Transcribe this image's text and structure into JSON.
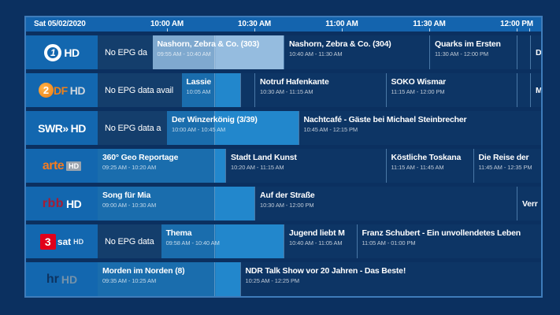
{
  "header": {
    "date": "Sat 05/02/2020",
    "times": [
      {
        "label": "10:00 AM",
        "min": 0
      },
      {
        "label": "10:30 AM",
        "min": 30
      },
      {
        "label": "11:00 AM",
        "min": 60
      },
      {
        "label": "11:30 AM",
        "min": 90
      },
      {
        "label": "12:00 PM",
        "min": 120
      }
    ],
    "extra_tick_min": 124.3
  },
  "now_min": 16.5,
  "colors": {
    "page_bg": "#0b3060",
    "panel_border": "#3f7cba",
    "header_bg": "#1464ae",
    "channel_bg": "#1367af",
    "noepg": "#143e6c",
    "future": "#0d3565",
    "current_dim": "#1a6dad",
    "current_bright": "#2287cc",
    "selected_dim": "#7fa9cf",
    "selected_bright": "#95bcdf"
  },
  "channels": [
    {
      "id": "daserste",
      "name": "Das Erste HD",
      "symbol": "1",
      "hd": "HD"
    },
    {
      "id": "zdf",
      "name": "ZDF HD",
      "symbol": "2",
      "rest": "DF",
      "hd": "HD"
    },
    {
      "id": "swr",
      "name": "SWR HD",
      "symbol": "SWR»",
      "hd": "HD"
    },
    {
      "id": "arte",
      "name": "arte HD",
      "symbol": "arte",
      "hd": "HD"
    },
    {
      "id": "rbb",
      "name": "rbb HD",
      "symbol": "rbb",
      "hd": "HD"
    },
    {
      "id": "3sat",
      "name": "3sat HD",
      "symbol": "3",
      "rest": "sat",
      "hd": "HD"
    },
    {
      "id": "hr",
      "name": "hr HD",
      "symbol": "hr",
      "hd": "HD"
    }
  ],
  "rows": [
    {
      "channel": "daserste",
      "programs": [
        {
          "title": "No EPG da",
          "time": "",
          "start": -23.8,
          "end": -5,
          "state": "noepg"
        },
        {
          "title": "Nashorn, Zebra & Co. (303)",
          "time": "09:55 AM - 10:40 AM",
          "start": -5,
          "end": 40,
          "state": "selected"
        },
        {
          "title": "Nashorn, Zebra & Co. (304)",
          "time": "10:40 AM - 11:30 AM",
          "start": 40,
          "end": 90,
          "state": "future"
        },
        {
          "title": "Quarks im Ersten",
          "time": "11:30 AM - 12:00 PM",
          "start": 90,
          "end": 120,
          "state": "future"
        },
        {
          "title": "",
          "time": "",
          "start": 120,
          "end": 124.6,
          "state": "future"
        },
        {
          "title": "D",
          "time": "",
          "start": 124.6,
          "end": 128.4,
          "state": "future"
        }
      ]
    },
    {
      "channel": "zdf",
      "programs": [
        {
          "title": "No EPG data avail",
          "time": "",
          "start": -23.8,
          "end": 5,
          "state": "noepg"
        },
        {
          "title": "Lassie",
          "time": "10:05 AM",
          "start": 5,
          "end": 25,
          "state": "current"
        },
        {
          "title": "",
          "time": "",
          "start": 25,
          "end": 30,
          "state": "future"
        },
        {
          "title": "Notruf Hafenkante",
          "time": "10:30 AM - 11:15 AM",
          "start": 30,
          "end": 75,
          "state": "future"
        },
        {
          "title": "SOKO Wismar",
          "time": "11:15 AM - 12:00 PM",
          "start": 75,
          "end": 120,
          "state": "future"
        },
        {
          "title": "",
          "time": "",
          "start": 120,
          "end": 124.6,
          "state": "future"
        },
        {
          "title": "M",
          "time": "",
          "start": 124.6,
          "end": 128.4,
          "state": "future"
        }
      ]
    },
    {
      "channel": "swr",
      "programs": [
        {
          "title": "No EPG data a",
          "time": "",
          "start": -23.8,
          "end": 0,
          "state": "noepg"
        },
        {
          "title": "Der Winzerkönig (3/39)",
          "time": "10:00 AM - 10:45 AM",
          "start": 0,
          "end": 45,
          "state": "current"
        },
        {
          "title": "Nachtcafé - Gäste bei Michael Steinbrecher",
          "time": "10:45 AM - 12:15 PM",
          "start": 45,
          "end": 128.4,
          "state": "future"
        }
      ]
    },
    {
      "channel": "arte",
      "programs": [
        {
          "title": "360° Geo Reportage",
          "time": "09:25 AM - 10:20 AM",
          "start": -23.8,
          "end": 20,
          "state": "current"
        },
        {
          "title": "Stadt Land Kunst",
          "time": "10:20 AM - 11:15 AM",
          "start": 20,
          "end": 75,
          "state": "future"
        },
        {
          "title": "Köstliche Toskana",
          "time": "11:15 AM - 11:45 AM",
          "start": 75,
          "end": 105,
          "state": "future"
        },
        {
          "title": "Die Reise der",
          "time": "11:45 AM - 12:35 PM",
          "start": 105,
          "end": 128.4,
          "state": "future"
        }
      ]
    },
    {
      "channel": "rbb",
      "programs": [
        {
          "title": "Song für Mia",
          "time": "09:00 AM - 10:30 AM",
          "start": -23.8,
          "end": 30,
          "state": "current"
        },
        {
          "title": "Auf der Straße",
          "time": "10:30 AM - 12:00 PM",
          "start": 30,
          "end": 120,
          "state": "future"
        },
        {
          "title": "Verr",
          "time": "",
          "start": 120,
          "end": 128.4,
          "state": "future"
        }
      ]
    },
    {
      "channel": "3sat",
      "programs": [
        {
          "title": "No EPG data",
          "time": "",
          "start": -23.8,
          "end": -2,
          "state": "noepg"
        },
        {
          "title": "Thema",
          "time": "09:58 AM - 10:40 AM",
          "start": -2,
          "end": 40,
          "state": "current"
        },
        {
          "title": "Jugend liebt M",
          "time": "10:40 AM - 11:05 AM",
          "start": 40,
          "end": 65,
          "state": "future"
        },
        {
          "title": "Franz Schubert - Ein unvollendetes Leben",
          "time": "11:05 AM - 01:00 PM",
          "start": 65,
          "end": 128.4,
          "state": "future"
        }
      ]
    },
    {
      "channel": "hr",
      "programs": [
        {
          "title": "Morden im Norden (8)",
          "time": "09:35 AM - 10:25 AM",
          "start": -23.8,
          "end": 25,
          "state": "current"
        },
        {
          "title": "NDR Talk Show vor 20 Jahren - Das Beste!",
          "time": "10:25 AM - 12:25 PM",
          "start": 25,
          "end": 128.4,
          "state": "future"
        }
      ]
    }
  ]
}
